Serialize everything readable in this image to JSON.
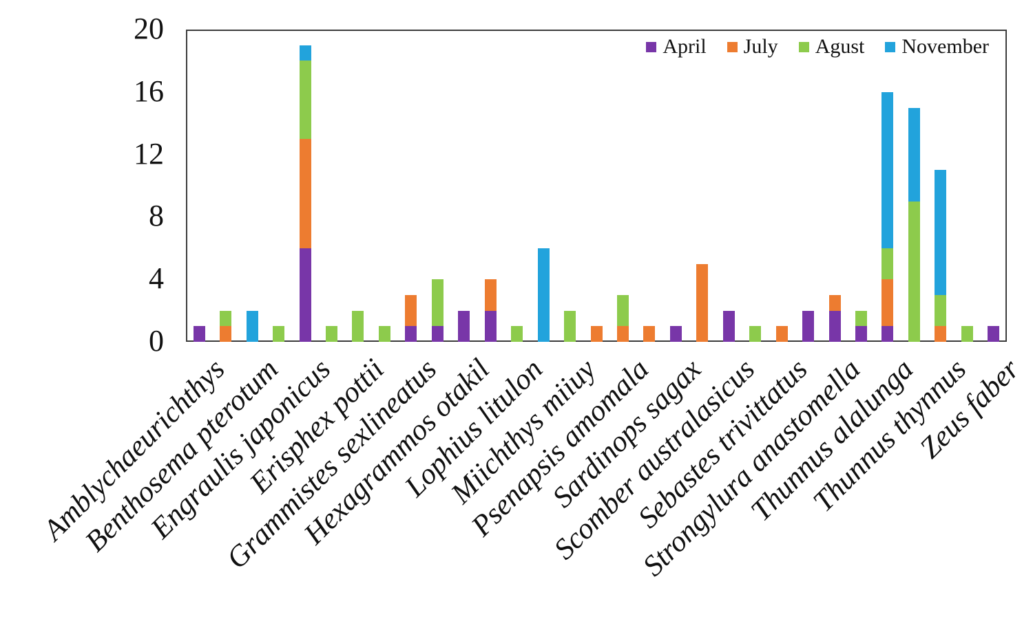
{
  "chart_data": {
    "type": "bar",
    "stacked": true,
    "title": "",
    "xlabel": "",
    "ylabel": "",
    "ylim": [
      0,
      20
    ],
    "yticks": [
      0,
      4,
      8,
      12,
      16,
      20
    ],
    "gridlines": false,
    "legend_position": "top-right-inside",
    "num_bars": 31,
    "x_label_interval": 2,
    "x_tick_labels": [
      "Amblychaeurichthys",
      "Benthosema pterotum",
      "Engraulis japonicus",
      "Erisphex pottii",
      "Grammistes sexlineatus",
      "Hexagrammos otakil",
      "Lophius litulon",
      "Miichthys miiuy",
      "Psenapsis amomala",
      "Sardinops sagax",
      "Scomber australasicus",
      "Sebastes trivittatus",
      "Strongylura anastomella",
      "Thunnus alalunga",
      "Thunnus thynnus",
      "Zeus faber"
    ],
    "series": [
      {
        "name": "April",
        "color": "#7836A8",
        "values": [
          1,
          0,
          0,
          0,
          6,
          0,
          0,
          0,
          1,
          1,
          2,
          2,
          0,
          0,
          0,
          0,
          0,
          0,
          1,
          0,
          2,
          0,
          0,
          2,
          2,
          1,
          1,
          0,
          0,
          0,
          1
        ]
      },
      {
        "name": "July",
        "color": "#ED7C30",
        "values": [
          0,
          1,
          0,
          0,
          7,
          0,
          0,
          0,
          2,
          0,
          0,
          2,
          0,
          0,
          0,
          1,
          1,
          1,
          0,
          5,
          0,
          0,
          1,
          0,
          1,
          0,
          3,
          0,
          1,
          0,
          0
        ]
      },
      {
        "name": "Agust",
        "color": "#8DCB4C",
        "values": [
          0,
          1,
          0,
          1,
          5,
          1,
          2,
          1,
          0,
          3,
          0,
          0,
          1,
          0,
          2,
          0,
          2,
          0,
          0,
          0,
          0,
          1,
          0,
          0,
          0,
          1,
          2,
          9,
          2,
          1,
          0
        ]
      },
      {
        "name": "November",
        "color": "#22A3DC",
        "values": [
          0,
          0,
          2,
          0,
          1,
          0,
          0,
          0,
          0,
          0,
          0,
          0,
          0,
          6,
          0,
          0,
          0,
          0,
          0,
          0,
          0,
          0,
          0,
          0,
          0,
          0,
          10,
          6,
          8,
          0,
          0
        ]
      }
    ]
  }
}
